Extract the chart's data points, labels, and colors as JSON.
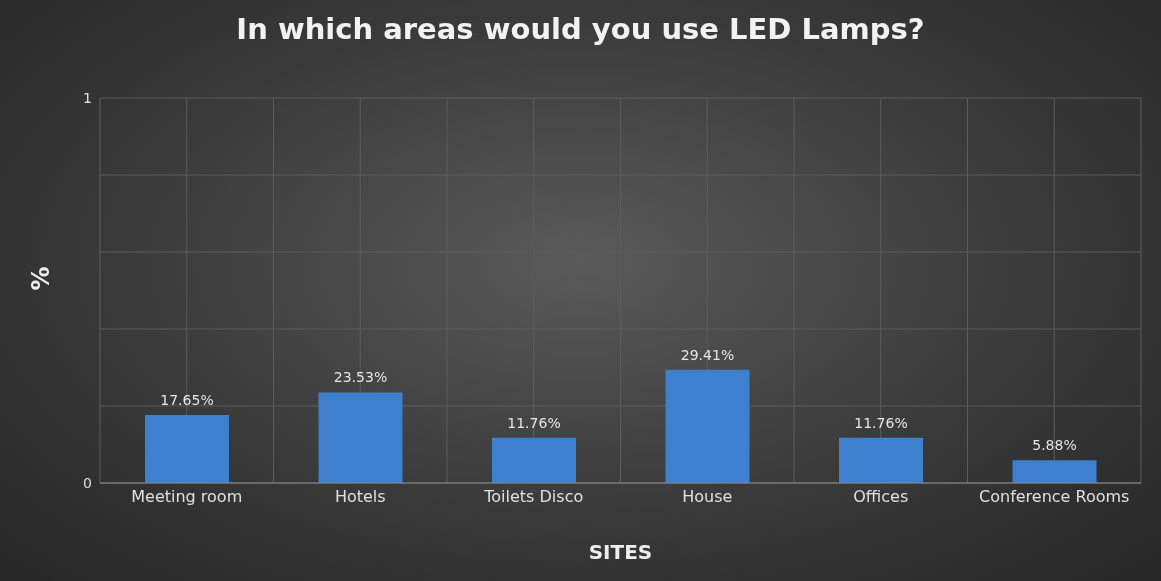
{
  "chart_data": {
    "type": "bar",
    "title": "In which areas would you use LED Lamps?",
    "xlabel": "SITES",
    "ylabel": "%",
    "categories": [
      "Meeting room",
      "Hotels",
      "Toilets Disco",
      "House",
      "Offices",
      "Conference Rooms"
    ],
    "values": [
      0.1765,
      0.2353,
      0.1176,
      0.2941,
      0.1176,
      0.0588
    ],
    "value_labels": [
      "17.65%",
      "23.53%",
      "11.76%",
      "29.41%",
      "11.76%",
      "5.88%"
    ],
    "color": "#3f7fd0",
    "ylim": [
      0,
      1
    ],
    "yticks": [
      0,
      {
        "value": 0.2,
        "label": null
      },
      {
        "value": 0.4,
        "label": null
      },
      {
        "value": 0.6,
        "label": null
      },
      {
        "value": 0.8,
        "label": null
      },
      1
    ],
    "grid": true
  }
}
